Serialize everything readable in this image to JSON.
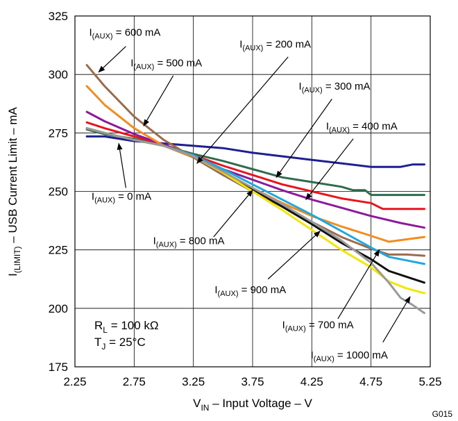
{
  "chart_data": {
    "type": "line",
    "xlabel": {
      "main": "V",
      "sub": "IN",
      "rest": " – Input Voltage – V"
    },
    "ylabel": {
      "main": "I",
      "sub": "(LIMIT)",
      "rest": " – USB Current Limit – mA"
    },
    "xlim": [
      2.25,
      5.25
    ],
    "ylim": [
      175,
      325
    ],
    "xticks": [
      "2.25",
      "2.75",
      "3.25",
      "3.75",
      "4.25",
      "4.75",
      "5.25"
    ],
    "yticks": [
      "175",
      "200",
      "225",
      "250",
      "275",
      "300",
      "325"
    ],
    "grid": true,
    "conditions": {
      "rl": {
        "main": "R",
        "sub": "L",
        "rest": " = 100 kΩ"
      },
      "tj": {
        "main": "T",
        "sub": "J",
        "rest": " = 25°C"
      }
    },
    "figure_code": "G015",
    "colors": {
      "i0": "#1f1f8f",
      "i200": "#2e6b4e",
      "i300": "#e8141c",
      "i400": "#8b1a9c",
      "i500": "#f28c1e",
      "i600": "#9b6b4e",
      "i700": "#1fa8dc",
      "i800": "#111111",
      "i900": "#f2e600",
      "i1000": "#9a9a9a"
    },
    "series": [
      {
        "key": "i0",
        "x": [
          2.35,
          2.5,
          2.75,
          3.0,
          3.25,
          3.5,
          3.75,
          4.0,
          4.25,
          4.5,
          4.75,
          5.0,
          5.1,
          5.2
        ],
        "y": [
          273.5,
          273.5,
          271.5,
          270.5,
          269.5,
          268.5,
          266.5,
          265,
          263.5,
          262,
          260.5,
          260.5,
          261.5,
          261.5
        ]
      },
      {
        "key": "i200",
        "x": [
          2.35,
          2.5,
          2.75,
          3.0,
          3.25,
          3.5,
          3.75,
          4.0,
          4.25,
          4.5,
          4.6,
          4.7,
          4.75,
          5.0,
          5.2
        ],
        "y": [
          276.5,
          274.5,
          272.5,
          269.5,
          266,
          263,
          259.5,
          256,
          254,
          252,
          250.5,
          250.5,
          248.5,
          248.5,
          248.5
        ]
      },
      {
        "key": "i300",
        "x": [
          2.35,
          2.5,
          2.75,
          3.0,
          3.25,
          3.5,
          3.75,
          4.0,
          4.25,
          4.5,
          4.75,
          4.85,
          5.0,
          5.2
        ],
        "y": [
          279.5,
          277,
          273.5,
          270,
          265.5,
          261,
          257,
          253,
          250,
          247,
          245,
          242.5,
          242.5,
          242.5
        ]
      },
      {
        "key": "i400",
        "x": [
          2.35,
          2.5,
          2.75,
          3.0,
          3.25,
          3.5,
          3.75,
          4.0,
          4.25,
          4.5,
          4.75,
          5.0,
          5.2
        ],
        "y": [
          284,
          280,
          274.5,
          270,
          265,
          259.5,
          255,
          250.5,
          246.5,
          243,
          239.5,
          236.5,
          234.5
        ]
      },
      {
        "key": "i500",
        "x": [
          2.35,
          2.5,
          2.75,
          3.0,
          3.25,
          3.5,
          3.75,
          4.0,
          4.25,
          4.5,
          4.75,
          4.9,
          5.05,
          5.2
        ],
        "y": [
          295,
          287,
          277,
          269.5,
          264.5,
          258,
          251.5,
          245,
          239.5,
          235,
          231,
          228.5,
          229.5,
          230.5
        ]
      },
      {
        "key": "i600",
        "x": [
          2.35,
          2.5,
          2.75,
          3.0,
          3.25,
          3.5,
          3.75,
          4.0,
          4.25,
          4.5,
          4.75,
          4.9,
          5.05,
          5.2
        ],
        "y": [
          304,
          295,
          282,
          272,
          264.5,
          257,
          250,
          243.5,
          237,
          230.5,
          225.5,
          223,
          223,
          222.5
        ]
      },
      {
        "key": "i700",
        "x": [
          2.35,
          2.5,
          2.75,
          3.0,
          3.25,
          3.5,
          3.75,
          4.0,
          4.25,
          4.5,
          4.75,
          4.9,
          5.05,
          5.2
        ],
        "y": [
          277,
          275,
          272,
          269.5,
          265.5,
          259.5,
          253,
          246.5,
          240,
          233,
          226,
          222,
          220.5,
          219
        ]
      },
      {
        "key": "i800",
        "x": [
          2.35,
          2.5,
          2.75,
          3.0,
          3.25,
          3.5,
          3.75,
          4.0,
          4.25,
          4.5,
          4.75,
          4.9,
          5.05,
          5.2
        ],
        "y": [
          277,
          275,
          272,
          269.5,
          265,
          258.5,
          251,
          243.5,
          236,
          228,
          221,
          216,
          213.5,
          211
        ]
      },
      {
        "key": "i900",
        "x": [
          2.35,
          2.5,
          2.75,
          3.0,
          3.25,
          3.5,
          3.75,
          4.0,
          4.25,
          4.5,
          4.75,
          4.9,
          5.05,
          5.2
        ],
        "y": [
          277,
          275,
          272,
          269.5,
          265,
          258,
          250,
          242,
          233.5,
          225,
          217.5,
          211.5,
          208.5,
          206.5
        ]
      },
      {
        "key": "i1000",
        "x": [
          2.35,
          2.5,
          2.75,
          3.0,
          3.25,
          3.5,
          3.75,
          4.0,
          4.25,
          4.5,
          4.75,
          4.9,
          5.0,
          5.1,
          5.2
        ],
        "y": [
          277,
          275,
          272,
          269.5,
          265,
          258.5,
          251.5,
          244.5,
          237,
          229,
          219.5,
          211,
          204.5,
          201.5,
          198
        ]
      }
    ],
    "annotations": [
      {
        "main": "I",
        "sub": "(AUX)",
        "rest": " = 600 mA",
        "at": [
          2.37,
          316.5
        ],
        "arrow_from": [
          2.68,
          312
        ],
        "arrow_to": [
          2.45,
          301
        ]
      },
      {
        "main": "I",
        "sub": "(AUX)",
        "rest": " = 500 mA",
        "at": [
          2.72,
          303.5
        ],
        "arrow_from": [
          3.08,
          299.5
        ],
        "arrow_to": [
          2.83,
          278
        ]
      },
      {
        "main": "I",
        "sub": "(AUX)",
        "rest": " = 200 mA",
        "at": [
          3.64,
          311.5
        ],
        "arrow_from": [
          4.05,
          307.5
        ],
        "arrow_to": [
          3.28,
          262
        ]
      },
      {
        "main": "I",
        "sub": "(AUX)",
        "rest": " = 300 mA",
        "at": [
          4.14,
          293.5
        ],
        "arrow_from": [
          4.42,
          289.5
        ],
        "arrow_to": [
          3.95,
          256
        ]
      },
      {
        "main": "I",
        "sub": "(AUX)",
        "rest": " = 400 mA",
        "at": [
          4.37,
          276.5
        ],
        "arrow_from": [
          4.6,
          272.5
        ],
        "arrow_to": [
          4.2,
          246.5
        ]
      },
      {
        "main": "I",
        "sub": "(AUX)",
        "rest": " = 0 mA",
        "at": [
          2.39,
          246.5
        ],
        "arrow_from": [
          2.68,
          251.5
        ],
        "arrow_to": [
          2.62,
          270.5
        ]
      },
      {
        "main": "I",
        "sub": "(AUX)",
        "rest": " = 800 mA",
        "at": [
          2.91,
          227.5
        ],
        "arrow_from": [
          3.42,
          230.5
        ],
        "arrow_to": [
          3.75,
          250.5
        ]
      },
      {
        "main": "I",
        "sub": "(AUX)",
        "rest": " = 900 mA",
        "at": [
          3.43,
          206.5
        ],
        "arrow_from": [
          3.88,
          212.5
        ],
        "arrow_to": [
          4.32,
          233
        ]
      },
      {
        "main": "I",
        "sub": "(AUX)",
        "rest": " = 700 mA",
        "at": [
          4.0,
          191.5
        ],
        "arrow_from": [
          4.47,
          195.5
        ],
        "arrow_to": [
          4.82,
          225
        ]
      },
      {
        "main": "I",
        "sub": "(AUX)",
        "rest": " = 1000 mA",
        "at": [
          4.24,
          178.5
        ],
        "arrow_from": [
          4.85,
          185.5
        ],
        "arrow_to": [
          5.08,
          205
        ]
      }
    ]
  }
}
